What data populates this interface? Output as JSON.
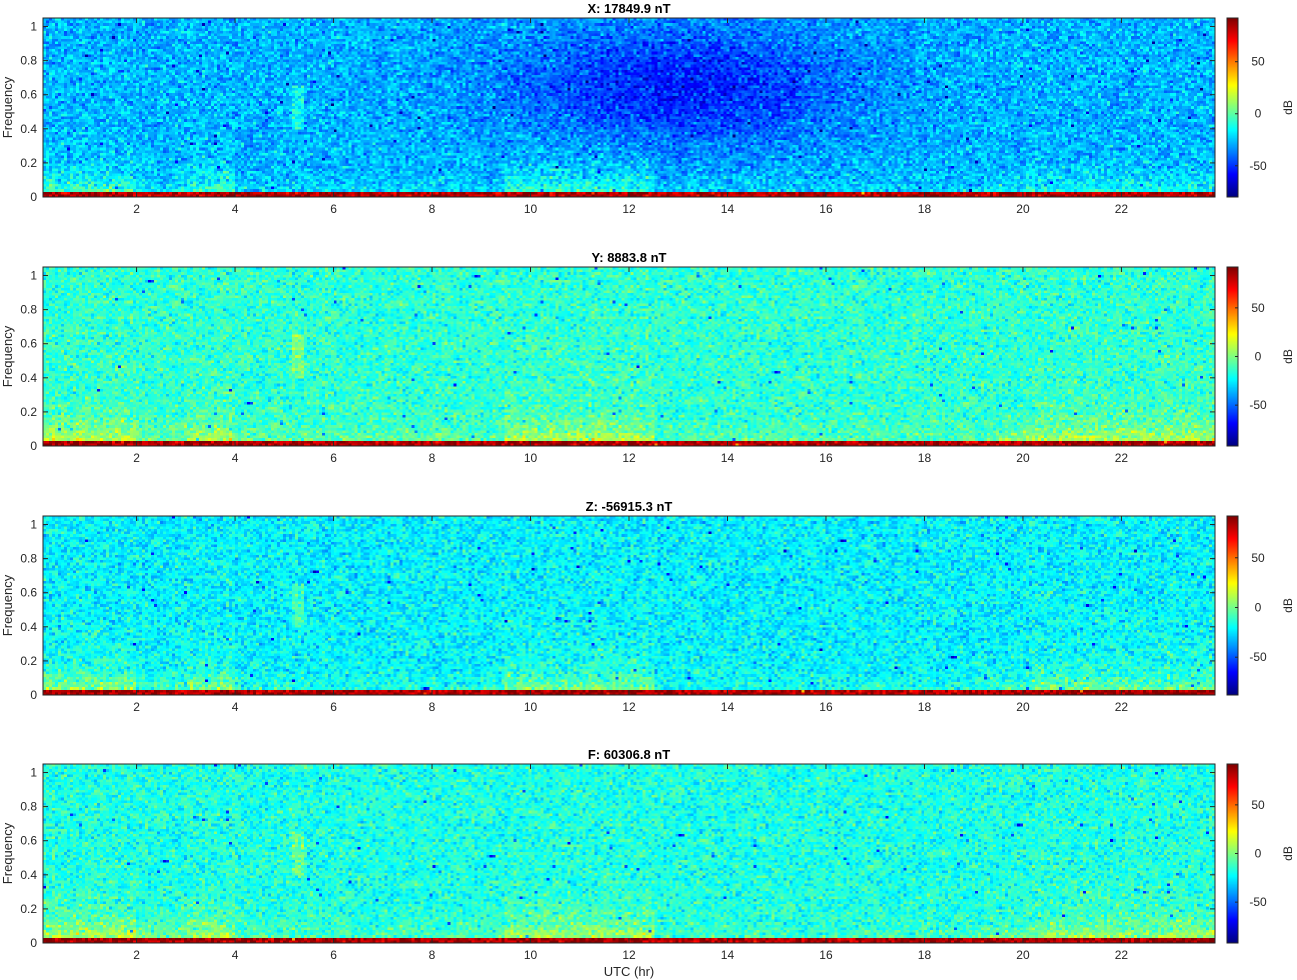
{
  "chart_data": [
    {
      "type": "heatmap",
      "title": "X: 17849.9 nT",
      "xlabel": "",
      "ylabel": "Frequency",
      "colorbar_label": "dB",
      "colormap": "jet",
      "xlim": [
        0.1,
        23.9
      ],
      "ylim": [
        0,
        1.05
      ],
      "clim": [
        -80,
        92
      ],
      "xticks": [
        "2",
        "4",
        "6",
        "8",
        "10",
        "12",
        "14",
        "16",
        "18",
        "20",
        "22"
      ],
      "yticks": [
        "0",
        "0.2",
        "0.4",
        "0.6",
        "0.8",
        "1"
      ],
      "cticks": [
        "50",
        "0",
        "-50"
      ],
      "baseline_db": -28,
      "low_freq_enhancement": [
        {
          "x_start": 0.1,
          "x_end": 2.0,
          "db": 30
        },
        {
          "x_start": 2.0,
          "x_end": 3.0,
          "db": 18
        },
        {
          "x_start": 3.0,
          "x_end": 4.0,
          "db": 28
        },
        {
          "x_start": 4.0,
          "x_end": 9.5,
          "db": 10
        },
        {
          "x_start": 9.5,
          "x_end": 12.5,
          "db": 28
        },
        {
          "x_start": 12.5,
          "x_end": 19.3,
          "db": 8
        },
        {
          "x_start": 19.3,
          "x_end": 20.2,
          "db": 18
        },
        {
          "x_start": 20.2,
          "x_end": 23.9,
          "db": 22
        }
      ],
      "quiet_region": {
        "x_center": 13.0,
        "y_center": 0.65,
        "db": -55
      }
    },
    {
      "type": "heatmap",
      "title": "Y: 8883.8 nT",
      "xlabel": "",
      "ylabel": "Frequency",
      "colorbar_label": "dB",
      "colormap": "jet",
      "xlim": [
        0.1,
        23.9
      ],
      "ylim": [
        0,
        1.05
      ],
      "clim": [
        -92,
        92
      ],
      "xticks": [
        "2",
        "4",
        "6",
        "8",
        "10",
        "12",
        "14",
        "16",
        "18",
        "20",
        "22"
      ],
      "yticks": [
        "0",
        "0.2",
        "0.4",
        "0.6",
        "0.8",
        "1"
      ],
      "cticks": [
        "50",
        "0",
        "-50"
      ],
      "baseline_db": -15,
      "low_freq_enhancement": [
        {
          "x_start": 0.1,
          "x_end": 2.0,
          "db": 35
        },
        {
          "x_start": 2.0,
          "x_end": 3.0,
          "db": 22
        },
        {
          "x_start": 3.0,
          "x_end": 4.0,
          "db": 32
        },
        {
          "x_start": 4.0,
          "x_end": 9.5,
          "db": 14
        },
        {
          "x_start": 9.5,
          "x_end": 12.5,
          "db": 32
        },
        {
          "x_start": 12.5,
          "x_end": 19.3,
          "db": 10
        },
        {
          "x_start": 19.3,
          "x_end": 20.2,
          "db": 22
        },
        {
          "x_start": 20.2,
          "x_end": 23.9,
          "db": 30
        }
      ],
      "quiet_region": null
    },
    {
      "type": "heatmap",
      "title": "Z: -56915.3 nT",
      "xlabel": "",
      "ylabel": "Frequency",
      "colorbar_label": "dB",
      "colormap": "jet",
      "xlim": [
        0.1,
        23.9
      ],
      "ylim": [
        0,
        1.05
      ],
      "clim": [
        -88,
        92
      ],
      "xticks": [
        "2",
        "4",
        "6",
        "8",
        "10",
        "12",
        "14",
        "16",
        "18",
        "20",
        "22"
      ],
      "yticks": [
        "0",
        "0.2",
        "0.4",
        "0.6",
        "0.8",
        "1"
      ],
      "cticks": [
        "50",
        "0",
        "-50"
      ],
      "baseline_db": -22,
      "low_freq_enhancement": [
        {
          "x_start": 0.1,
          "x_end": 2.0,
          "db": 35
        },
        {
          "x_start": 2.0,
          "x_end": 3.0,
          "db": 20
        },
        {
          "x_start": 3.0,
          "x_end": 4.0,
          "db": 32
        },
        {
          "x_start": 4.0,
          "x_end": 9.5,
          "db": 10
        },
        {
          "x_start": 9.5,
          "x_end": 12.5,
          "db": 30
        },
        {
          "x_start": 12.5,
          "x_end": 19.3,
          "db": 8
        },
        {
          "x_start": 19.3,
          "x_end": 20.2,
          "db": 18
        },
        {
          "x_start": 20.2,
          "x_end": 23.9,
          "db": 26
        }
      ],
      "quiet_region": null
    },
    {
      "type": "heatmap",
      "title": "F: 60306.8 nT",
      "xlabel": "UTC (hr)",
      "ylabel": "Frequency",
      "colorbar_label": "dB",
      "colormap": "jet",
      "xlim": [
        0.1,
        23.9
      ],
      "ylim": [
        0,
        1.05
      ],
      "clim": [
        -92,
        92
      ],
      "xticks": [
        "2",
        "4",
        "6",
        "8",
        "10",
        "12",
        "14",
        "16",
        "18",
        "20",
        "22"
      ],
      "yticks": [
        "0",
        "0.2",
        "0.4",
        "0.6",
        "0.8",
        "1"
      ],
      "cticks": [
        "50",
        "0",
        "-50"
      ],
      "baseline_db": -18,
      "low_freq_enhancement": [
        {
          "x_start": 0.1,
          "x_end": 2.0,
          "db": 38
        },
        {
          "x_start": 2.0,
          "x_end": 3.0,
          "db": 22
        },
        {
          "x_start": 3.0,
          "x_end": 4.0,
          "db": 34
        },
        {
          "x_start": 4.0,
          "x_end": 9.5,
          "db": 12
        },
        {
          "x_start": 9.5,
          "x_end": 12.5,
          "db": 32
        },
        {
          "x_start": 12.5,
          "x_end": 19.3,
          "db": 10
        },
        {
          "x_start": 19.3,
          "x_end": 20.2,
          "db": 20
        },
        {
          "x_start": 20.2,
          "x_end": 23.9,
          "db": 28
        }
      ],
      "quiet_region": null
    }
  ]
}
